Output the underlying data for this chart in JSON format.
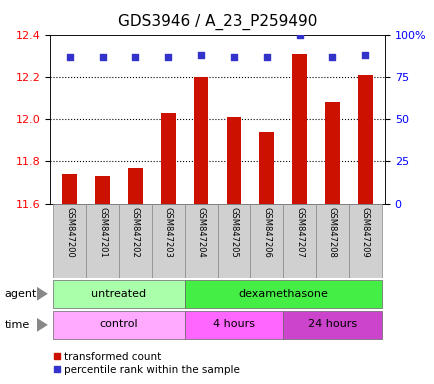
{
  "title": "GDS3946 / A_23_P259490",
  "samples": [
    "GSM847200",
    "GSM847201",
    "GSM847202",
    "GSM847203",
    "GSM847204",
    "GSM847205",
    "GSM847206",
    "GSM847207",
    "GSM847208",
    "GSM847209"
  ],
  "bar_values": [
    11.74,
    11.73,
    11.77,
    12.03,
    12.2,
    12.01,
    11.94,
    12.31,
    12.08,
    12.21
  ],
  "percentile_values": [
    87,
    87,
    87,
    87,
    88,
    87,
    87,
    100,
    87,
    88
  ],
  "ylim": [
    11.6,
    12.4
  ],
  "yticks_left": [
    11.6,
    11.8,
    12.0,
    12.2,
    12.4
  ],
  "yticks_right": [
    0,
    25,
    50,
    75,
    100
  ],
  "bar_color": "#cc1100",
  "dot_color": "#3333cc",
  "bar_width": 0.45,
  "name_bg": "#d0d0d0",
  "agent_untreated_color": "#aaffaa",
  "agent_dexa_color": "#44ee44",
  "time_control_color": "#ffaaff",
  "time_4h_color": "#ff66ff",
  "time_24h_color": "#cc44cc",
  "legend_bar_label": "transformed count",
  "legend_dot_label": "percentile rank within the sample",
  "title_fontsize": 11,
  "tick_fontsize": 8,
  "sample_fontsize": 6,
  "label_row_fontsize": 8
}
